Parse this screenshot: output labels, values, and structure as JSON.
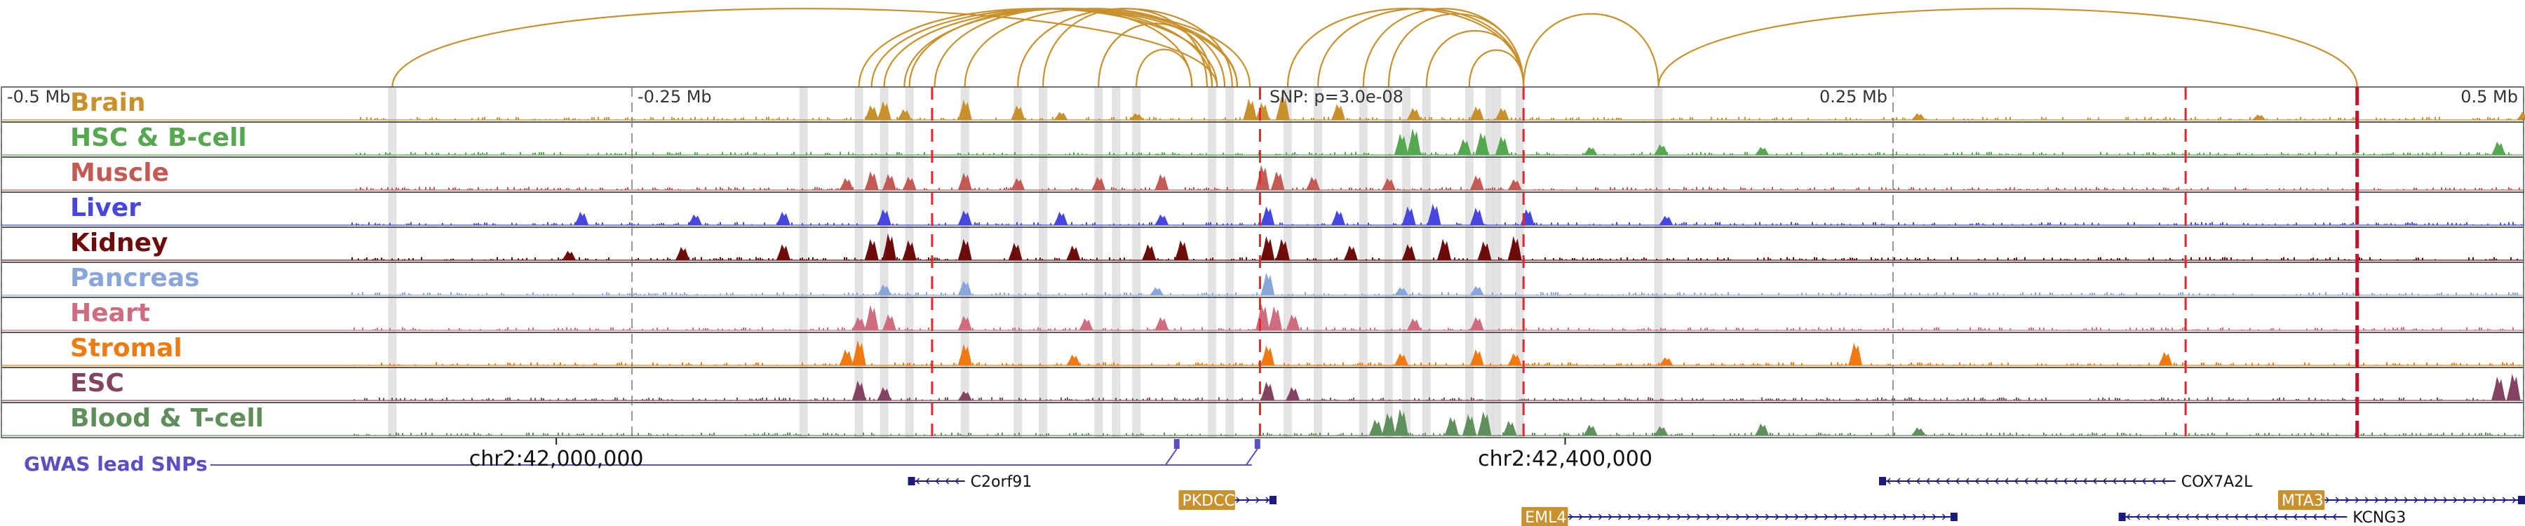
{
  "chart_data": {
    "type": "genome-browser-tracks",
    "title": "",
    "x_unit": "Mb relative to GWAS lead SNP",
    "xlim": [
      -0.5,
      0.5
    ],
    "scale_ticks": [
      {
        "label": "-0.5 Mb",
        "value": -0.5
      },
      {
        "label": "-0.25 Mb",
        "value": -0.25
      },
      {
        "label": "0.25 Mb",
        "value": 0.25
      },
      {
        "label": "0.5 Mb",
        "value": 0.5
      }
    ],
    "snp_label": "SNP: p=3.0e-08",
    "snp_position": 0.0,
    "genomic_coordinates": [
      {
        "label": "chr2:42,000,000",
        "value": -0.28
      },
      {
        "label": "chr2:42,400,000",
        "value": 0.12
      }
    ],
    "tracks": [
      {
        "name": "Brain",
        "color": "#C8912B",
        "peaks": [
          [
            -0.155,
            0.55
          ],
          [
            -0.15,
            0.7
          ],
          [
            -0.142,
            0.4
          ],
          [
            -0.118,
            0.75
          ],
          [
            -0.097,
            0.55
          ],
          [
            -0.08,
            0.3
          ],
          [
            -0.05,
            0.25
          ],
          [
            -0.005,
            0.8
          ],
          [
            0.0,
            0.65
          ],
          [
            0.008,
            0.9
          ],
          [
            0.03,
            0.6
          ],
          [
            0.06,
            0.45
          ],
          [
            0.085,
            0.5
          ],
          [
            0.095,
            0.45
          ],
          [
            0.26,
            0.25
          ],
          [
            0.395,
            0.2
          ],
          [
            0.5,
            0.3
          ]
        ]
      },
      {
        "name": "HSC & B-cell",
        "color": "#55A84F",
        "peaks": [
          [
            0.055,
            0.8
          ],
          [
            0.06,
            1.0
          ],
          [
            0.08,
            0.6
          ],
          [
            0.087,
            0.85
          ],
          [
            0.095,
            0.7
          ],
          [
            0.13,
            0.3
          ],
          [
            0.158,
            0.4
          ],
          [
            0.198,
            0.3
          ],
          [
            0.49,
            0.5
          ]
        ]
      },
      {
        "name": "Muscle",
        "color": "#C45A54",
        "peaks": [
          [
            -0.165,
            0.45
          ],
          [
            -0.155,
            0.7
          ],
          [
            -0.148,
            0.6
          ],
          [
            -0.14,
            0.5
          ],
          [
            -0.118,
            0.65
          ],
          [
            -0.097,
            0.45
          ],
          [
            -0.065,
            0.5
          ],
          [
            -0.04,
            0.6
          ],
          [
            0.0,
            0.95
          ],
          [
            0.006,
            0.7
          ],
          [
            0.02,
            0.5
          ],
          [
            0.05,
            0.45
          ],
          [
            0.085,
            0.55
          ],
          [
            0.1,
            0.4
          ]
        ]
      },
      {
        "name": "Liver",
        "color": "#4747E0",
        "peaks": [
          [
            -0.27,
            0.5
          ],
          [
            -0.225,
            0.4
          ],
          [
            -0.19,
            0.5
          ],
          [
            -0.15,
            0.6
          ],
          [
            -0.118,
            0.55
          ],
          [
            -0.08,
            0.5
          ],
          [
            -0.04,
            0.4
          ],
          [
            0.002,
            0.7
          ],
          [
            0.03,
            0.55
          ],
          [
            0.058,
            0.7
          ],
          [
            0.068,
            0.8
          ],
          [
            0.085,
            0.65
          ],
          [
            0.105,
            0.6
          ],
          [
            0.16,
            0.35
          ]
        ]
      },
      {
        "name": "Kidney",
        "color": "#6E0C0C",
        "peaks": [
          [
            -0.275,
            0.35
          ],
          [
            -0.23,
            0.5
          ],
          [
            -0.19,
            0.6
          ],
          [
            -0.155,
            0.8
          ],
          [
            -0.148,
            1.0
          ],
          [
            -0.14,
            0.75
          ],
          [
            -0.118,
            0.8
          ],
          [
            -0.098,
            0.65
          ],
          [
            -0.075,
            0.55
          ],
          [
            -0.045,
            0.6
          ],
          [
            -0.032,
            0.75
          ],
          [
            0.002,
            0.9
          ],
          [
            0.008,
            0.8
          ],
          [
            0.035,
            0.55
          ],
          [
            0.058,
            0.6
          ],
          [
            0.072,
            0.8
          ],
          [
            0.088,
            0.7
          ],
          [
            0.1,
            0.9
          ]
        ]
      },
      {
        "name": "Pancreas",
        "color": "#89A6DA",
        "peaks": [
          [
            -0.15,
            0.4
          ],
          [
            -0.118,
            0.55
          ],
          [
            -0.042,
            0.3
          ],
          [
            0.002,
            0.85
          ],
          [
            0.055,
            0.3
          ],
          [
            0.085,
            0.35
          ]
        ]
      },
      {
        "name": "Heart",
        "color": "#D06C7F",
        "peaks": [
          [
            -0.16,
            0.5
          ],
          [
            -0.155,
            0.95
          ],
          [
            -0.148,
            0.6
          ],
          [
            -0.118,
            0.55
          ],
          [
            -0.07,
            0.45
          ],
          [
            -0.04,
            0.5
          ],
          [
            0.0,
            1.0
          ],
          [
            0.005,
            0.9
          ],
          [
            0.012,
            0.6
          ],
          [
            0.06,
            0.45
          ],
          [
            0.085,
            0.5
          ]
        ]
      },
      {
        "name": "Stromal",
        "color": "#F07A12",
        "peaks": [
          [
            -0.165,
            0.6
          ],
          [
            -0.16,
            0.95
          ],
          [
            -0.118,
            0.8
          ],
          [
            -0.075,
            0.4
          ],
          [
            0.002,
            0.75
          ],
          [
            0.055,
            0.45
          ],
          [
            0.085,
            0.6
          ],
          [
            0.1,
            0.45
          ],
          [
            0.16,
            0.3
          ],
          [
            0.235,
            0.85
          ],
          [
            0.358,
            0.5
          ]
        ]
      },
      {
        "name": "ESC",
        "color": "#844461",
        "peaks": [
          [
            -0.16,
            0.75
          ],
          [
            -0.15,
            0.5
          ],
          [
            -0.118,
            0.35
          ],
          [
            0.002,
            0.7
          ],
          [
            0.012,
            0.5
          ],
          [
            0.49,
            0.9
          ],
          [
            0.496,
            1.0
          ]
        ]
      },
      {
        "name": "Blood & T-cell",
        "color": "#5F8F5A",
        "peaks": [
          [
            0.045,
            0.6
          ],
          [
            0.05,
            0.85
          ],
          [
            0.055,
            1.0
          ],
          [
            0.075,
            0.7
          ],
          [
            0.082,
            0.8
          ],
          [
            0.088,
            0.9
          ],
          [
            0.098,
            0.55
          ],
          [
            0.13,
            0.4
          ],
          [
            0.158,
            0.35
          ],
          [
            0.198,
            0.45
          ],
          [
            0.26,
            0.3
          ]
        ]
      }
    ],
    "highlighted_regions": [
      -0.345,
      -0.182,
      -0.16,
      -0.15,
      -0.14,
      -0.118,
      -0.097,
      -0.087,
      -0.065,
      -0.058,
      -0.05,
      -0.02,
      -0.013,
      0.01,
      0.022,
      0.04,
      0.05,
      0.057,
      0.065,
      0.082,
      0.09,
      0.093,
      0.102,
      0.157
    ],
    "red_dashed_positions": [
      -0.131,
      -0.001,
      0.1035,
      0.366
    ],
    "red_solid_position": 0.434,
    "loops": [
      {
        "from": -0.345,
        "to": -0.018
      },
      {
        "from": -0.16,
        "to": -0.018
      },
      {
        "from": -0.155,
        "to": -0.01
      },
      {
        "from": -0.15,
        "to": -0.005
      },
      {
        "from": -0.142,
        "to": -0.01
      },
      {
        "from": -0.14,
        "to": -0.02
      },
      {
        "from": -0.13,
        "to": -0.028
      },
      {
        "from": -0.118,
        "to": -0.015
      },
      {
        "from": -0.097,
        "to": -0.012
      },
      {
        "from": -0.087,
        "to": -0.022
      },
      {
        "from": -0.065,
        "to": -0.02
      },
      {
        "from": -0.05,
        "to": -0.028
      },
      {
        "from": 0.01,
        "to": 0.1035
      },
      {
        "from": 0.022,
        "to": 0.1035
      },
      {
        "from": 0.04,
        "to": 0.1035
      },
      {
        "from": 0.05,
        "to": 0.1035
      },
      {
        "from": 0.065,
        "to": 0.1035
      },
      {
        "from": 0.082,
        "to": 0.1035
      },
      {
        "from": 0.1035,
        "to": 0.157
      },
      {
        "from": 0.157,
        "to": 0.434
      }
    ],
    "gwas_track": {
      "label": "GWAS lead SNPs",
      "snps": [
        -0.034,
        -0.002
      ]
    },
    "genes": [
      {
        "name": "C2orf91",
        "start": -0.14,
        "end": -0.118,
        "strand": "-",
        "row": 0,
        "highlighted": false
      },
      {
        "name": "PKDCC",
        "start": -0.012,
        "end": 0.005,
        "strand": "+",
        "row": 1,
        "highlighted": true
      },
      {
        "name": "COX7A2L",
        "start": 0.245,
        "end": 0.362,
        "strand": "-",
        "row": 0,
        "highlighted": false
      },
      {
        "name": "EML4",
        "start": 0.12,
        "end": 0.275,
        "strand": "+",
        "row": 2,
        "highlighted": true
      },
      {
        "name": "MTA3",
        "start": 0.42,
        "end": 0.5,
        "strand": "+",
        "row": 1,
        "highlighted": true
      },
      {
        "name": "KCNG3",
        "start": 0.34,
        "end": 0.43,
        "strand": "-",
        "row": 2,
        "highlighted": false
      }
    ]
  }
}
